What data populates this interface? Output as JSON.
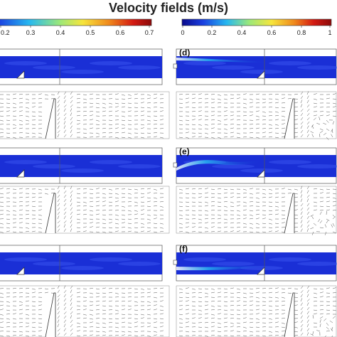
{
  "title": "Velocity fields (m/s)",
  "colorbars": [
    {
      "id": "left",
      "ticks": [
        "0.2",
        "0.3",
        "0.4",
        "0.5",
        "0.6",
        "0.7"
      ],
      "range": [
        0.15,
        0.7
      ]
    },
    {
      "id": "right",
      "ticks": [
        "0",
        "0.2",
        "0.4",
        "0.6",
        "0.8",
        "1"
      ],
      "range": [
        0,
        1
      ]
    }
  ],
  "panel_labels": [
    "(d)",
    "(e)",
    "(f)"
  ],
  "colors": {
    "field_blue": "#1a2fd6",
    "colormap": [
      "#0a0a8c",
      "#1a3fe0",
      "#26b8f0",
      "#9be87a",
      "#f6e53c",
      "#f08a1c",
      "#d41a12",
      "#8c0a0a"
    ]
  }
}
